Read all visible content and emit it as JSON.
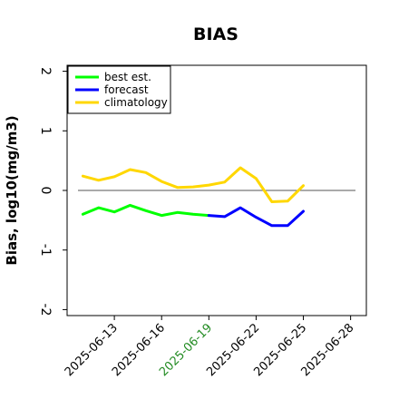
{
  "chart_data": {
    "type": "line",
    "title": "BIAS",
    "xlabel": "",
    "ylabel": "Bias, log10(mg/m3)",
    "ylim": [
      -2.1,
      2.1
    ],
    "y_ticks": [
      -2,
      -1,
      0,
      1,
      2
    ],
    "y_tick_labels": [
      "-2",
      "-1",
      "0",
      "1",
      "2"
    ],
    "xlim": [
      "2025-06-10",
      "2025-06-29"
    ],
    "x_ticks": [
      "2025-06-13",
      "2025-06-16",
      "2025-06-19",
      "2025-06-22",
      "2025-06-25",
      "2025-06-28"
    ],
    "x_tick_highlight": "2025-06-19",
    "x_tick_color": "#000000",
    "x_tick_highlight_color": "#228B22",
    "reference_line": 0,
    "grid": false,
    "legend": "top-left",
    "series": [
      {
        "name": "best est.",
        "color": "#00ff00",
        "x": [
          "2025-06-11",
          "2025-06-12",
          "2025-06-13",
          "2025-06-14",
          "2025-06-15",
          "2025-06-16",
          "2025-06-17",
          "2025-06-18",
          "2025-06-19"
        ],
        "values": [
          -0.4,
          -0.29,
          -0.36,
          -0.25,
          -0.34,
          -0.42,
          -0.37,
          -0.4,
          -0.42
        ]
      },
      {
        "name": "forecast",
        "color": "#0000ff",
        "x": [
          "2025-06-19",
          "2025-06-20",
          "2025-06-21",
          "2025-06-22",
          "2025-06-23",
          "2025-06-24",
          "2025-06-25"
        ],
        "values": [
          -0.42,
          -0.44,
          -0.29,
          -0.45,
          -0.59,
          -0.59,
          -0.35
        ]
      },
      {
        "name": "climatology",
        "color": "#ffd700",
        "x": [
          "2025-06-11",
          "2025-06-12",
          "2025-06-13",
          "2025-06-14",
          "2025-06-15",
          "2025-06-16",
          "2025-06-17",
          "2025-06-18",
          "2025-06-19",
          "2025-06-20",
          "2025-06-21",
          "2025-06-22",
          "2025-06-23",
          "2025-06-24",
          "2025-06-25"
        ],
        "values": [
          0.24,
          0.17,
          0.23,
          0.35,
          0.3,
          0.15,
          0.05,
          0.06,
          0.09,
          0.14,
          0.38,
          0.2,
          -0.19,
          -0.18,
          0.08
        ]
      }
    ]
  }
}
